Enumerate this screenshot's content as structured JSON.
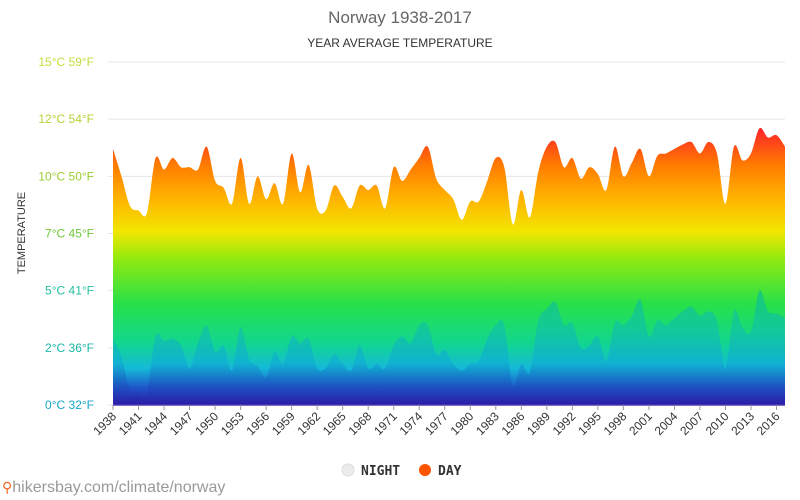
{
  "chart_data": {
    "type": "area",
    "title": "Norway 1938-2017",
    "subtitle": "YEAR AVERAGE TEMPERATURE",
    "ylabel": "TEMPERATURE",
    "xlabel": "",
    "ylim": [
      0,
      15
    ],
    "yticks": [
      {
        "value": 0,
        "label": "0°C 32°F",
        "color": "#1aa6c9"
      },
      {
        "value": 2.5,
        "label": "2°C 36°F",
        "color": "#1bb7a9"
      },
      {
        "value": 5,
        "label": "5°C 41°F",
        "color": "#22bfa0"
      },
      {
        "value": 7.5,
        "label": "7°C 45°F",
        "color": "#6ec83a"
      },
      {
        "value": 10,
        "label": "10°C 50°F",
        "color": "#9acd32"
      },
      {
        "value": 12.5,
        "label": "12°C 54°F",
        "color": "#b3d335"
      },
      {
        "value": 15,
        "label": "15°C 59°F",
        "color": "#c6dc3a"
      }
    ],
    "xtick_labels": [
      "1938",
      "1941",
      "1944",
      "1947",
      "1950",
      "1953",
      "1956",
      "1959",
      "1962",
      "1965",
      "1968",
      "1971",
      "1974",
      "1977",
      "1980",
      "1983",
      "1986",
      "1989",
      "1992",
      "1995",
      "1998",
      "2001",
      "2004",
      "2007",
      "2010",
      "2013",
      "2016"
    ],
    "x": [
      1938,
      1939,
      1940,
      1941,
      1942,
      1943,
      1944,
      1945,
      1946,
      1947,
      1948,
      1949,
      1950,
      1951,
      1952,
      1953,
      1954,
      1955,
      1956,
      1957,
      1958,
      1959,
      1960,
      1961,
      1962,
      1963,
      1964,
      1965,
      1966,
      1967,
      1968,
      1969,
      1970,
      1971,
      1972,
      1973,
      1974,
      1975,
      1976,
      1977,
      1978,
      1979,
      1980,
      1981,
      1982,
      1983,
      1984,
      1985,
      1986,
      1987,
      1988,
      1989,
      1990,
      1991,
      1992,
      1993,
      1994,
      1995,
      1996,
      1997,
      1998,
      1999,
      2000,
      2001,
      2002,
      2003,
      2004,
      2005,
      2006,
      2007,
      2008,
      2009,
      2010,
      2011,
      2012,
      2013,
      2014,
      2015,
      2016,
      2017
    ],
    "series": [
      {
        "name": "DAY",
        "color": "#ff5500",
        "values": [
          11.2,
          10.0,
          8.7,
          8.5,
          8.4,
          10.8,
          10.3,
          10.8,
          10.4,
          10.4,
          10.3,
          11.3,
          9.8,
          9.5,
          8.8,
          10.8,
          8.8,
          10.0,
          9.0,
          9.7,
          8.8,
          11.0,
          9.3,
          10.5,
          8.6,
          8.5,
          9.6,
          9.1,
          8.6,
          9.6,
          9.4,
          9.6,
          8.6,
          10.4,
          9.8,
          10.3,
          10.8,
          11.3,
          9.9,
          9.4,
          9.0,
          8.1,
          8.9,
          8.9,
          9.8,
          10.8,
          10.4,
          7.9,
          9.4,
          8.2,
          10.2,
          11.3,
          11.5,
          10.4,
          10.8,
          9.9,
          10.4,
          10.1,
          9.4,
          11.3,
          10.0,
          10.6,
          11.2,
          10.0,
          10.9,
          11.0,
          11.2,
          11.4,
          11.5,
          11.0,
          11.5,
          11.0,
          8.8,
          11.3,
          10.7,
          11.0,
          12.1,
          11.7,
          11.8,
          11.3
        ]
      },
      {
        "name": "NIGHT",
        "color": "#e6e6e6",
        "values": [
          2.9,
          2.1,
          0.6,
          0.5,
          0.5,
          3.0,
          2.8,
          2.9,
          2.6,
          1.6,
          2.7,
          3.5,
          2.3,
          2.6,
          1.5,
          3.4,
          2.0,
          1.7,
          1.2,
          2.3,
          1.8,
          3.0,
          2.7,
          2.9,
          1.6,
          1.6,
          2.2,
          1.8,
          1.5,
          2.6,
          1.6,
          1.8,
          1.6,
          2.6,
          3.0,
          2.7,
          3.5,
          3.5,
          2.2,
          2.4,
          1.8,
          1.5,
          1.8,
          1.9,
          2.9,
          3.5,
          3.5,
          0.8,
          1.8,
          1.4,
          3.7,
          4.2,
          4.5,
          3.5,
          3.6,
          2.5,
          2.6,
          3.0,
          1.9,
          3.6,
          3.5,
          3.9,
          4.6,
          3.0,
          3.7,
          3.5,
          3.8,
          4.1,
          4.3,
          3.9,
          4.1,
          3.7,
          1.6,
          4.1,
          3.4,
          3.2,
          5.0,
          4.1,
          4.0,
          3.8
        ]
      }
    ],
    "legend": {
      "placement": "bottom-center",
      "items": [
        "NIGHT",
        "DAY"
      ]
    },
    "grid": true
  },
  "source": {
    "text": "hikersbay.com/climate/norway"
  }
}
